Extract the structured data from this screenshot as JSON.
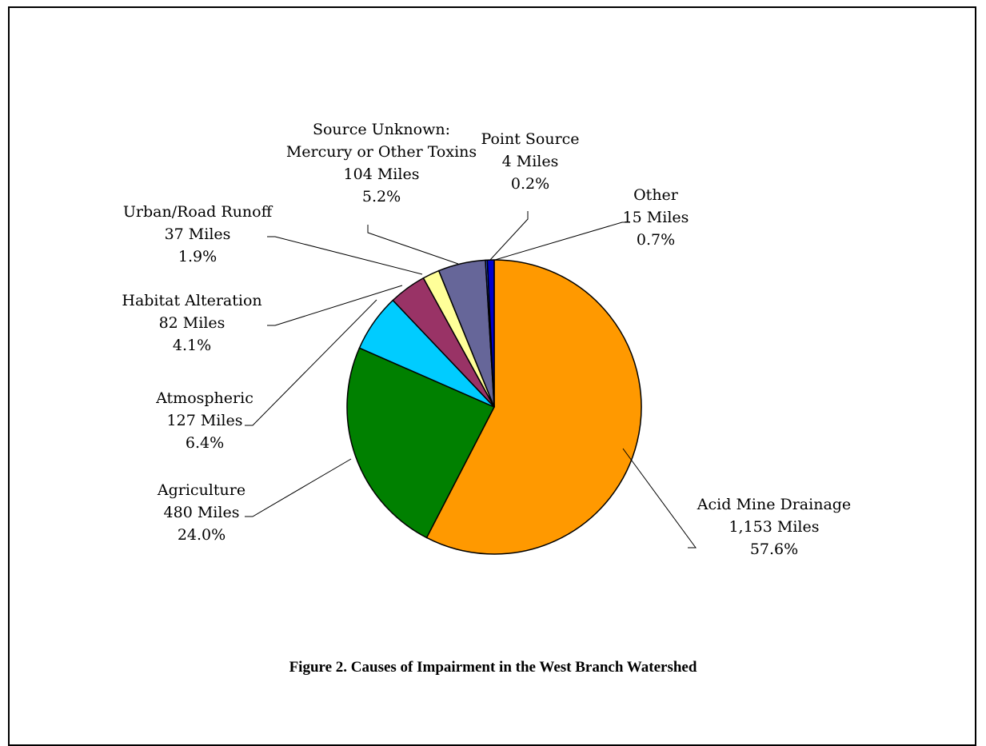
{
  "caption": "Figure 2. Causes of Impairment in the West Branch Watershed",
  "chart_data": {
    "type": "pie",
    "title": "",
    "unit": "Miles",
    "slices": [
      {
        "name": "Acid Mine Drainage",
        "lines": [
          "Acid Mine Drainage",
          "1,153 Miles",
          "57.6%"
        ],
        "value": 1153,
        "percent": 57.6,
        "color": "#FF9900"
      },
      {
        "name": "Agriculture",
        "lines": [
          "Agriculture",
          "480 Miles",
          "24.0%"
        ],
        "value": 480,
        "percent": 24.0,
        "color": "#008000"
      },
      {
        "name": "Atmospheric",
        "lines": [
          "Atmospheric",
          "127 Miles",
          "6.4%"
        ],
        "value": 127,
        "percent": 6.4,
        "color": "#00CCFF"
      },
      {
        "name": "Habitat Alteration",
        "lines": [
          "Habitat Alteration",
          "82 Miles",
          "4.1%"
        ],
        "value": 82,
        "percent": 4.1,
        "color": "#993366"
      },
      {
        "name": "Urban/Road Runoff",
        "lines": [
          "Urban/Road Runoff",
          "37 Miles",
          "1.9%"
        ],
        "value": 37,
        "percent": 1.9,
        "color": "#FFFF99"
      },
      {
        "name": "Source Unknown: Mercury or Other Toxins",
        "lines": [
          "Source Unknown:",
          "Mercury or Other Toxins",
          "104 Miles",
          "5.2%"
        ],
        "value": 104,
        "percent": 5.2,
        "color": "#666699"
      },
      {
        "name": "Point Source",
        "lines": [
          "Point Source",
          "4 Miles",
          "0.2%"
        ],
        "value": 4,
        "percent": 0.2,
        "color": "#3366FF"
      },
      {
        "name": "Other",
        "lines": [
          "Other",
          "15 Miles",
          "0.7%"
        ],
        "value": 15,
        "percent": 0.7,
        "color": "#0000CC"
      }
    ]
  }
}
